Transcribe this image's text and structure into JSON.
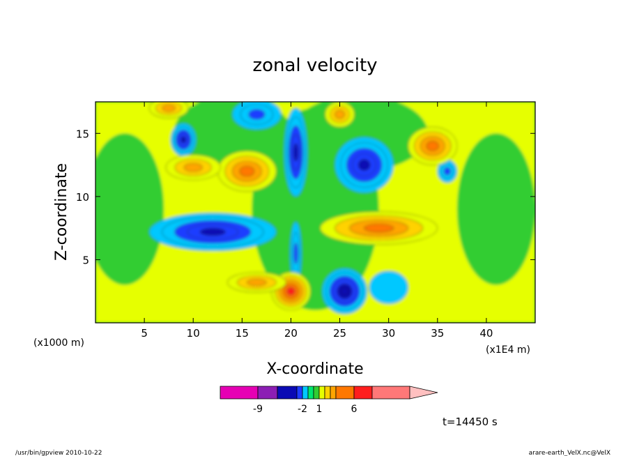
{
  "chart_data": {
    "type": "heatmap",
    "title": "zonal velocity",
    "xlabel": "X-coordinate",
    "ylabel": "Z-coordinate",
    "x_unit_left": "(x1000 m)",
    "x_unit_right": "(x1E4 m)",
    "xlim": [
      0,
      45
    ],
    "ylim": [
      0,
      17.5
    ],
    "x_ticks": [
      5,
      10,
      15,
      20,
      25,
      30,
      35,
      40
    ],
    "x_tick_labels": [
      "5",
      "10",
      "15",
      "20",
      "25",
      "30",
      "35",
      "40"
    ],
    "y_ticks": [
      5,
      10,
      15
    ],
    "y_tick_labels": [
      "5",
      "10",
      "15"
    ],
    "colorbar": {
      "colors": [
        "#e600b4",
        "#8c1eb4",
        "#0a0ab4",
        "#1e3cff",
        "#00c8ff",
        "#00e66e",
        "#32cd32",
        "#e6ff00",
        "#ffd200",
        "#ffa500",
        "#ff7800",
        "#ff1e1e",
        "#ff7878",
        "#ffc0c0"
      ],
      "tick_labels": [
        "-9",
        "-2",
        "1",
        "6"
      ]
    },
    "features": [
      {
        "x": 12,
        "z": 7.2,
        "rx": 6.5,
        "rz": 1.5,
        "value": -5
      },
      {
        "x": 9,
        "z": 14.5,
        "rx": 1.3,
        "rz": 1.3,
        "value": -5
      },
      {
        "x": 20.5,
        "z": 13.5,
        "rx": 1.2,
        "rz": 3.5,
        "value": -5
      },
      {
        "x": 16.5,
        "z": 16.5,
        "rx": 2.5,
        "rz": 1.2,
        "value": -3
      },
      {
        "x": 27.5,
        "z": 12.5,
        "rx": 3.0,
        "rz": 2.2,
        "value": -5
      },
      {
        "x": 36,
        "z": 12.0,
        "rx": 1.0,
        "rz": 0.9,
        "value": -3
      },
      {
        "x": 25.5,
        "z": 2.5,
        "rx": 2.3,
        "rz": 1.8,
        "value": -6
      },
      {
        "x": 30,
        "z": 2.8,
        "rx": 2.0,
        "rz": 1.3,
        "value": -1
      },
      {
        "x": 20.5,
        "z": 5.5,
        "rx": 0.6,
        "rz": 2.5,
        "value": -3
      },
      {
        "x": 29,
        "z": 7.5,
        "rx": 6.0,
        "rz": 1.3,
        "value": 4
      },
      {
        "x": 15.5,
        "z": 12.0,
        "rx": 3.0,
        "rz": 1.6,
        "value": 4
      },
      {
        "x": 10,
        "z": 12.3,
        "rx": 2.8,
        "rz": 1.0,
        "value": 3
      },
      {
        "x": 34.5,
        "z": 14.0,
        "rx": 2.5,
        "rz": 1.5,
        "value": 4
      },
      {
        "x": 20.0,
        "z": 2.5,
        "rx": 2.0,
        "rz": 1.5,
        "value": 5
      },
      {
        "x": 16.5,
        "z": 3.2,
        "rx": 3.0,
        "rz": 0.8,
        "value": 3
      },
      {
        "x": 7.5,
        "z": 17.0,
        "rx": 2.0,
        "rz": 0.8,
        "value": 3
      },
      {
        "x": 25,
        "z": 16.5,
        "rx": 1.5,
        "rz": 1.0,
        "value": 3
      }
    ]
  },
  "time_label": "t=14450 s",
  "footer_left": "/usr/bin/gpview  2010-10-22",
  "footer_right": "arare-earth_VelX.nc@VelX"
}
